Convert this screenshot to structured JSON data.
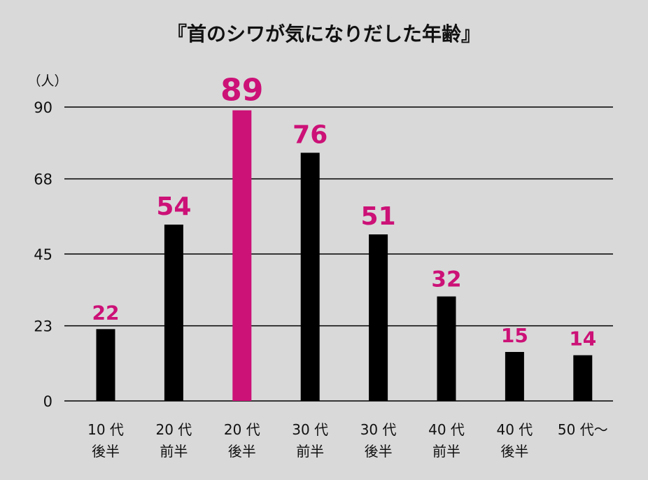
{
  "chart_data": {
    "type": "bar",
    "title": "『首のシワが気になりだした年齢』",
    "unit_label": "（人）",
    "categories": [
      [
        "10 代",
        "後半"
      ],
      [
        "20 代",
        "前半"
      ],
      [
        "20 代",
        "後半"
      ],
      [
        "30 代",
        "前半"
      ],
      [
        "30 代",
        "後半"
      ],
      [
        "40 代",
        "前半"
      ],
      [
        "40 代",
        "後半"
      ],
      [
        "50 代～",
        ""
      ]
    ],
    "values": [
      22,
      54,
      89,
      76,
      51,
      32,
      15,
      14
    ],
    "yticks": [
      0,
      23,
      45,
      68,
      90
    ],
    "ylim": [
      0,
      90
    ],
    "highlight_index": 2,
    "grid": true,
    "colors": {
      "bar": "#000000",
      "highlight_bar": "#cc1177",
      "value_label": "#cc1177",
      "grid": "#000000",
      "background": "#d9d9d9",
      "text": "#111111"
    }
  }
}
